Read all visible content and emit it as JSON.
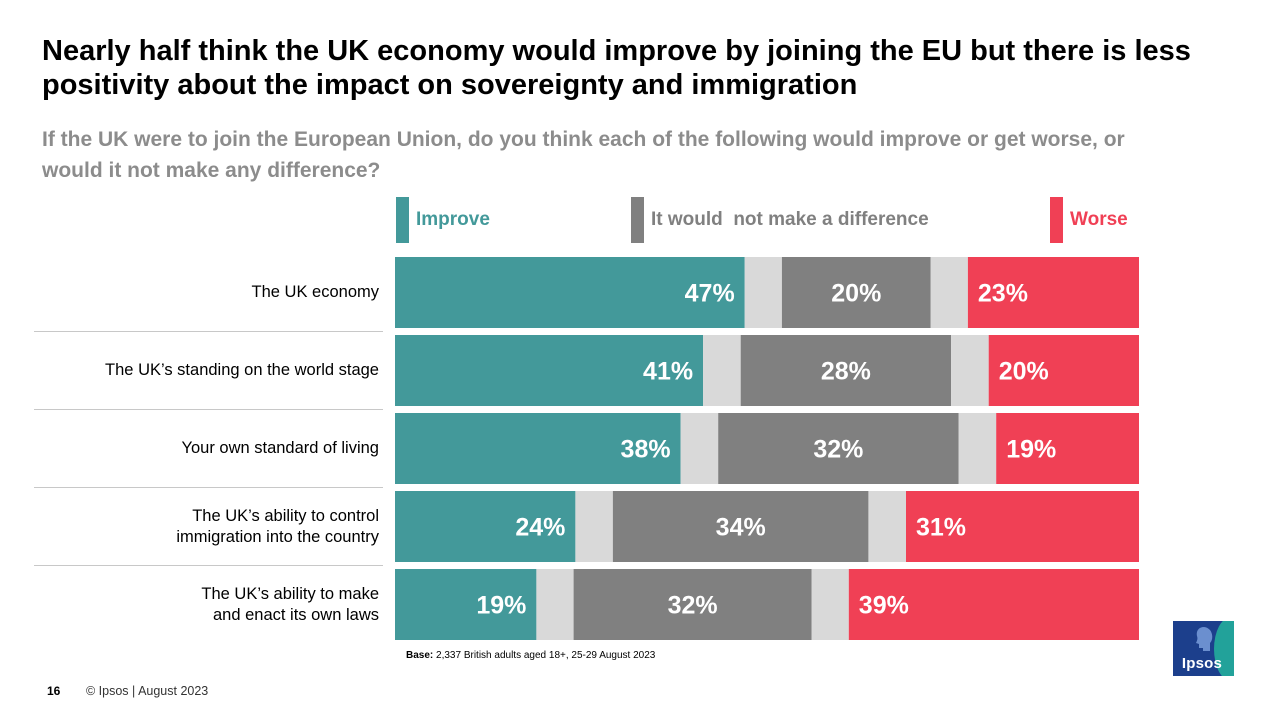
{
  "title": "Nearly half think the UK economy would improve by joining the EU but there is less positivity about the impact on sovereignty and immigration",
  "subtitle": "If the UK were to join the European Union, do you think each of the following would improve or get worse, or would it not make any difference?",
  "chart_data": {
    "type": "bar",
    "orientation": "horizontal",
    "stacked": true,
    "title": "",
    "xlabel": "",
    "ylabel": "",
    "xlim": [
      0,
      100
    ],
    "grid": false,
    "legend_position": "top",
    "categories": [
      [
        "The UK economy"
      ],
      [
        "The UK’s standing on the world stage"
      ],
      [
        "Your own standard of living"
      ],
      [
        "The UK’s ability to control",
        "immigration into the country"
      ],
      [
        "The UK’s ability to make",
        "and enact its own laws"
      ]
    ],
    "series": [
      {
        "name": "Improve",
        "color": "#43999a",
        "values": [
          47,
          41,
          38,
          24,
          19
        ],
        "labels": [
          "47%",
          "41%",
          "38%",
          "24%",
          "19%"
        ]
      },
      {
        "name": "",
        "color": "#d9d9d9",
        "values": [
          5,
          5,
          5,
          5,
          5
        ],
        "labels": [
          "",
          "",
          "",
          "",
          ""
        ]
      },
      {
        "name": "It would  not make a difference",
        "color": "#808080",
        "values": [
          20,
          28,
          32,
          34,
          32
        ],
        "labels": [
          "20%",
          "28%",
          "32%",
          "34%",
          "32%"
        ]
      },
      {
        "name": "",
        "color": "#d9d9d9",
        "values": [
          5,
          5,
          5,
          5,
          5
        ],
        "labels": [
          "",
          "",
          "",
          "",
          ""
        ]
      },
      {
        "name": "Worse",
        "color": "#f04055",
        "values": [
          23,
          20,
          19,
          31,
          39
        ],
        "labels": [
          "23%",
          "20%",
          "19%",
          "31%",
          "39%"
        ]
      }
    ]
  },
  "legend": [
    {
      "label": "Improve",
      "color": "#43999a"
    },
    {
      "label": "It would  not make a difference",
      "color": "#808080"
    },
    {
      "label": "Worse",
      "color": "#f04055"
    }
  ],
  "footer": {
    "base_bold": "Base:",
    "base_text": " 2,337 British adults aged 18+, 25-29 August 2023",
    "page_number": "16",
    "copyright": "© Ipsos | August 2023",
    "logo_text": "Ipsos"
  }
}
